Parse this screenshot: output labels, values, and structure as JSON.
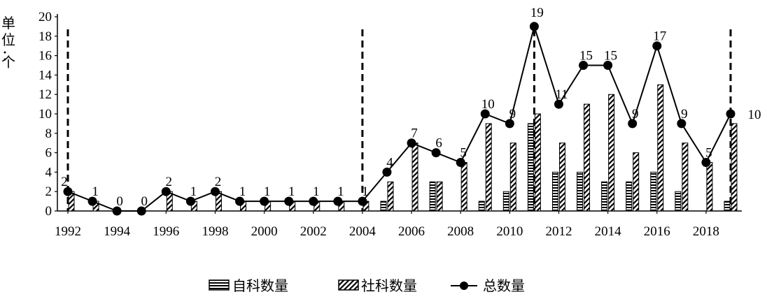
{
  "chart_data": {
    "type": "bar+line",
    "ylabel": "单位：个",
    "ylim": [
      0,
      20
    ],
    "yticks": [
      0,
      2,
      4,
      6,
      8,
      10,
      12,
      14,
      16,
      18,
      20
    ],
    "x": [
      1992,
      1993,
      1994,
      1995,
      1996,
      1997,
      1998,
      1999,
      2000,
      2001,
      2002,
      2003,
      2004,
      2005,
      2006,
      2007,
      2008,
      2009,
      2010,
      2011,
      2012,
      2013,
      2014,
      2015,
      2016,
      2017,
      2018,
      2019
    ],
    "xtick_labels": [
      "1992",
      "1994",
      "1996",
      "1998",
      "2000",
      "2002",
      "2004",
      "2006",
      "2008",
      "2010",
      "2012",
      "2014",
      "2016",
      "2018"
    ],
    "series": [
      {
        "name": "自科数量",
        "type": "bar",
        "pattern": "horizontal-stripes",
        "values": [
          0,
          0,
          0,
          0,
          0,
          0,
          0,
          0,
          0,
          0,
          0,
          0,
          0,
          1,
          0,
          3,
          0,
          1,
          2,
          9,
          4,
          4,
          3,
          3,
          4,
          2,
          0,
          1
        ]
      },
      {
        "name": "社科数量",
        "type": "bar",
        "pattern": "diagonal-stripes",
        "values": [
          2,
          1,
          0,
          0,
          2,
          1,
          2,
          1,
          1,
          1,
          1,
          1,
          1,
          3,
          7,
          3,
          5,
          9,
          7,
          10,
          7,
          11,
          12,
          6,
          13,
          7,
          5,
          9
        ]
      },
      {
        "name": "总数量",
        "type": "line",
        "marker": "circle",
        "values": [
          2,
          1,
          0,
          0,
          2,
          1,
          2,
          1,
          1,
          1,
          1,
          1,
          1,
          4,
          7,
          6,
          5,
          10,
          9,
          19,
          11,
          15,
          15,
          9,
          17,
          9,
          5,
          10
        ]
      }
    ],
    "dashed_dividers_at": [
      1992,
      2004,
      2011,
      2019
    ],
    "legend_position": "bottom-center",
    "grid": false
  }
}
